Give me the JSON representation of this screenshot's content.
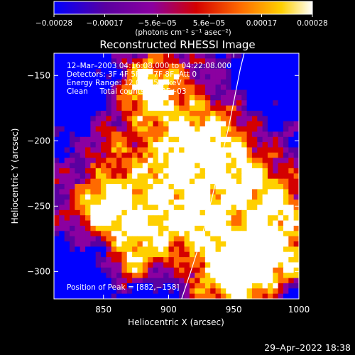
{
  "chart_data": {
    "type": "heatmap",
    "title": "Reconstructed RHESSI Image",
    "xlabel": "Heliocentric X (arcsec)",
    "ylabel": "Heliocentric Y (arcsec)",
    "xlim": [
      812,
      1000
    ],
    "ylim": [
      -321,
      -133
    ],
    "x_ticks": [
      850,
      900,
      950,
      1000
    ],
    "x_tick_labels": [
      "850",
      "900",
      "950",
      "1000"
    ],
    "y_ticks": [
      -150,
      -200,
      -250,
      -300
    ],
    "y_tick_labels": [
      "−150",
      "−200",
      "−250",
      "−300"
    ],
    "colorbar": {
      "range": [
        -0.00028,
        0.00028
      ],
      "ticks": [
        -0.00028,
        -0.00017,
        -5.6e-05,
        5.6e-05,
        0.00017,
        0.00028
      ],
      "tick_labels": [
        "−0.00028",
        "−0.00017",
        "−5.6e−05",
        "5.6e−05",
        "0.00017",
        "0.00028"
      ],
      "units_label": "(photons cm⁻² s⁻¹ asec⁻²)",
      "colors": [
        "#0000ff",
        "#5a00a0",
        "#8b00a0",
        "#d40000",
        "#ff6a00",
        "#ffd000",
        "#ffffff"
      ]
    },
    "annotations": {
      "time": "12–Mar–2003 04:16:08.000 to 04:22:08.000",
      "detectors": "Detectors: 3F 4F 5F 6F 7F 8F, Att 0",
      "energy": "Energy Range: 12.0 – 25.0 keV",
      "method": "Clean     Total counts: 3.53E+03",
      "peak": "Position of Peak = [882,−158]"
    },
    "peak_position": [
      882,
      -158
    ],
    "limb_curve": {
      "x": [
        910,
        917,
        925,
        933,
        940,
        946,
        951,
        955,
        958
      ],
      "y": [
        -321,
        -300,
        -275,
        -245,
        -215,
        -190,
        -165,
        -145,
        -133
      ]
    },
    "grid": false
  },
  "footer": {
    "timestamp": "29–Apr–2022 18:38"
  }
}
